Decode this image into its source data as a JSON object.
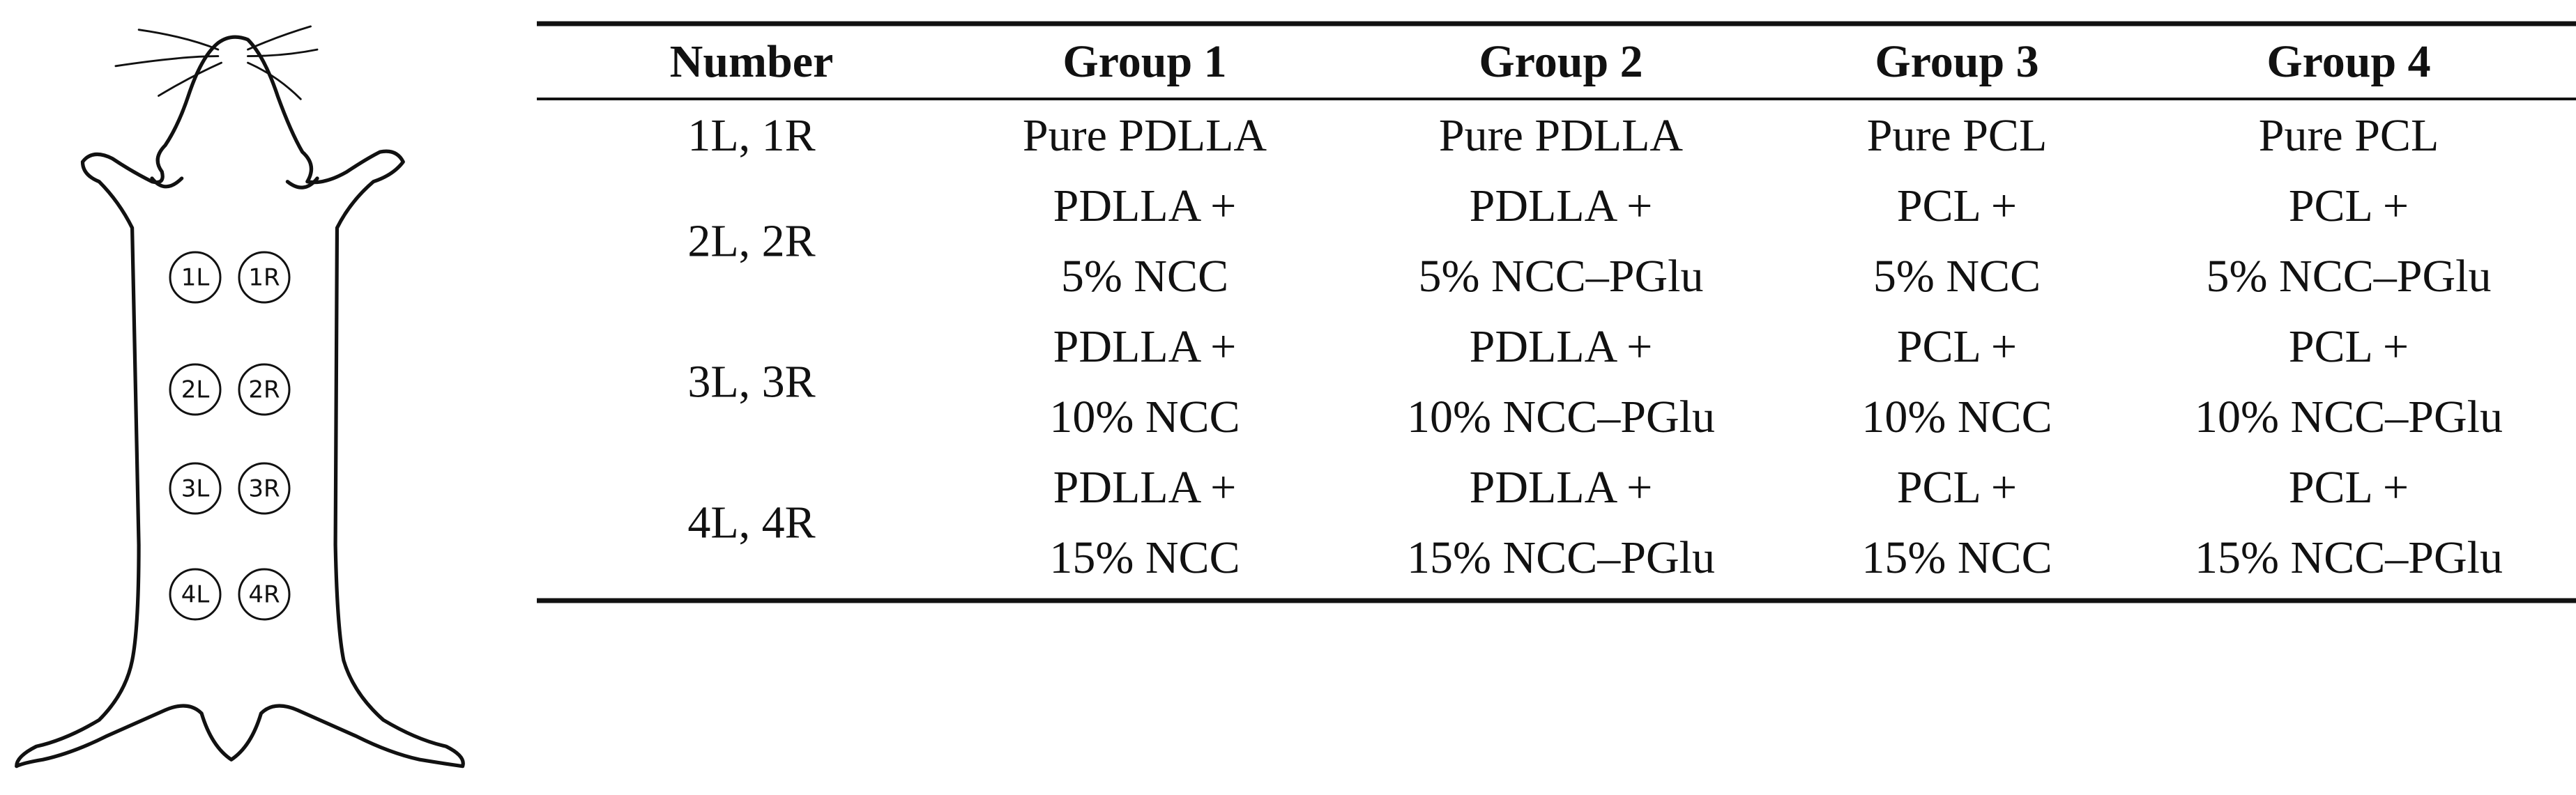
{
  "figure": {
    "sites": [
      [
        "1L",
        "1R"
      ],
      [
        "2L",
        "2R"
      ],
      [
        "3L",
        "3R"
      ],
      [
        "4L",
        "4R"
      ]
    ]
  },
  "table": {
    "header": [
      "Number",
      "Group 1",
      "Group 2",
      "Group 3",
      "Group 4"
    ],
    "rows": [
      {
        "number": "1L, 1R",
        "cells": [
          [
            "Pure PDLLA"
          ],
          [
            "Pure PDLLA"
          ],
          [
            "Pure PCL"
          ],
          [
            "Pure PCL"
          ]
        ]
      },
      {
        "number": "2L, 2R",
        "cells": [
          [
            "PDLLA +",
            "5% NCC"
          ],
          [
            "PDLLA +",
            "5% NCC–PGlu"
          ],
          [
            "PCL +",
            "5% NCC"
          ],
          [
            "PCL +",
            "5% NCC–PGlu"
          ]
        ]
      },
      {
        "number": "3L, 3R",
        "cells": [
          [
            "PDLLA +",
            "10% NCC"
          ],
          [
            "PDLLA +",
            "10% NCC–PGlu"
          ],
          [
            "PCL +",
            "10% NCC"
          ],
          [
            "PCL +",
            "10% NCC–PGlu"
          ]
        ]
      },
      {
        "number": "4L, 4R",
        "cells": [
          [
            "PDLLA +",
            "15% NCC"
          ],
          [
            "PDLLA +",
            "15% NCC–PGlu"
          ],
          [
            "PCL +",
            "15% NCC"
          ],
          [
            "PCL +",
            "15% NCC–PGlu"
          ]
        ]
      }
    ]
  }
}
